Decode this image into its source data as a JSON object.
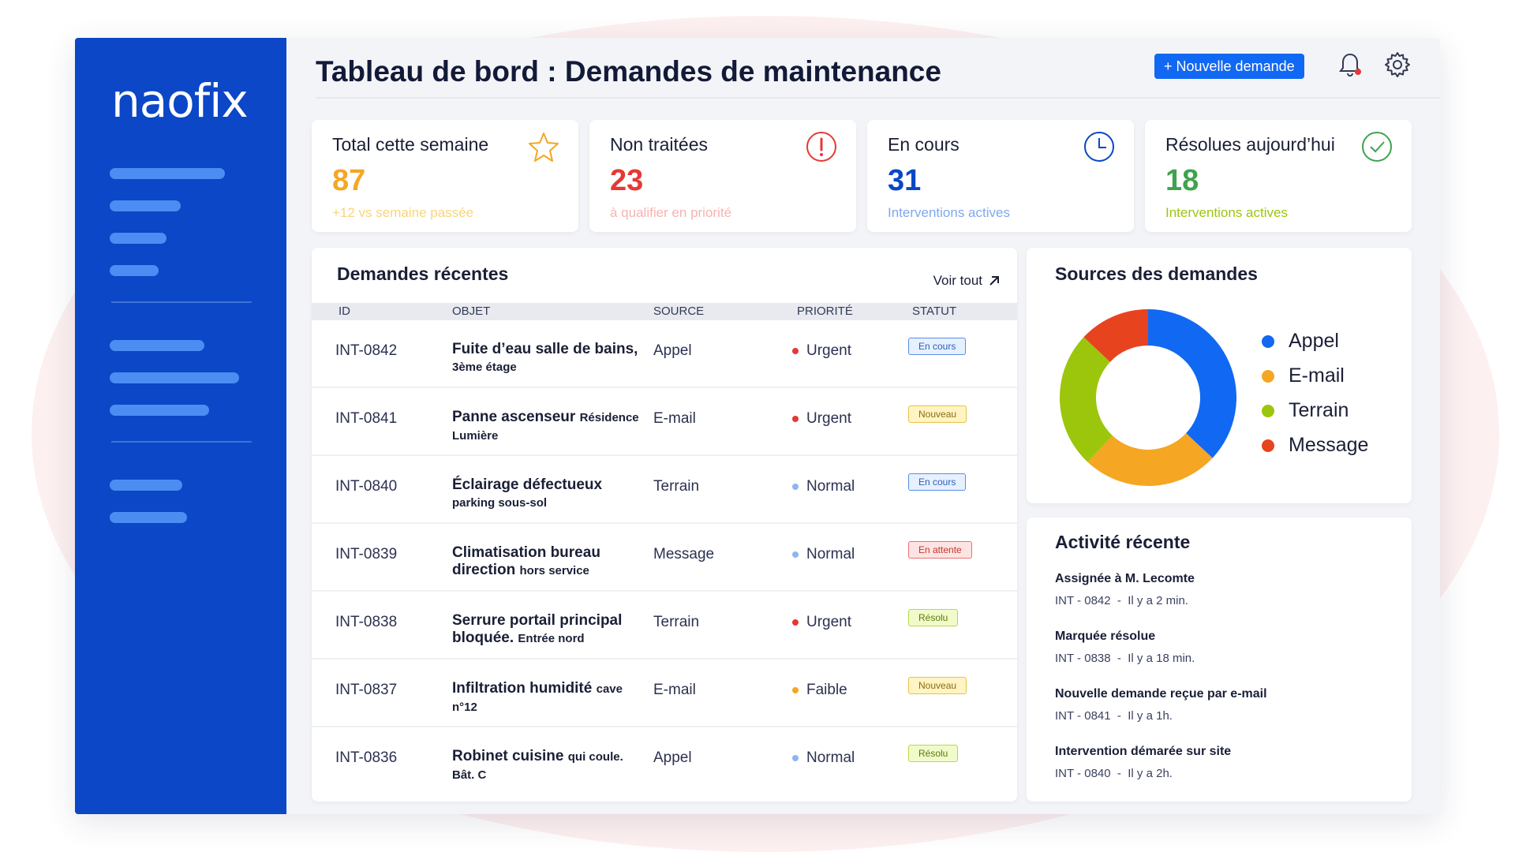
{
  "brand": {
    "logo_text": "naofix"
  },
  "header": {
    "title": "Tableau de bord : Demandes de maintenance",
    "new_button_label": "+ Nouvelle demande"
  },
  "stats": [
    {
      "title": "Total cette semaine",
      "value": "87",
      "sub": "+12 vs semaine passée",
      "color": "#f5a623",
      "sub_color": "#f9d57a",
      "icon": "star-icon"
    },
    {
      "title": "Non traitées",
      "value": "23",
      "sub": "à qualifier en priorité",
      "color": "#e53935",
      "sub_color": "#f7b3b0",
      "icon": "exclamation-icon"
    },
    {
      "title": "En cours",
      "value": "31",
      "sub": "Interventions actives",
      "color": "#0b47c6",
      "sub_color": "#7fa8ee",
      "icon": "clock-icon"
    },
    {
      "title": "Résolues aujourd’hui",
      "value": "18",
      "sub": "Interventions actives",
      "color": "#3fa34d",
      "sub_color": "#9bc60c",
      "icon": "check-icon"
    }
  ],
  "recent": {
    "title": "Demandes récentes",
    "see_all": "Voir tout",
    "columns": [
      "ID",
      "OBJET",
      "SOURCE",
      "PRIORITÉ",
      "STATUT"
    ],
    "rows": [
      {
        "id": "INT-0842",
        "obj_main": "Fuite d’eau salle de bains,",
        "obj_sub": "3ème étage",
        "source": "Appel",
        "priority": "Urgent",
        "pri_color": "#e53935",
        "status": "En cours",
        "status_style": "encours"
      },
      {
        "id": "INT-0841",
        "obj_main": "Panne ascenseur",
        "obj_sub": "Résidence Lumière",
        "source": "E-mail",
        "priority": "Urgent",
        "pri_color": "#e53935",
        "status": "Nouveau",
        "status_style": "nouveau"
      },
      {
        "id": "INT-0840",
        "obj_main": "Éclairage défectueux",
        "obj_sub": "parking sous-sol",
        "source": "Terrain",
        "priority": "Normal",
        "pri_color": "#8fb4f5",
        "status": "En cours",
        "status_style": "encours"
      },
      {
        "id": "INT-0839",
        "obj_main": "Climatisation bureau direction",
        "obj_sub": "hors service",
        "source": "Message",
        "priority": "Normal",
        "pri_color": "#8fb4f5",
        "status": "En attente",
        "status_style": "attente"
      },
      {
        "id": "INT-0838",
        "obj_main": "Serrure portail principal bloquée.",
        "obj_sub": "Entrée nord",
        "source": "Terrain",
        "priority": "Urgent",
        "pri_color": "#e53935",
        "status": "Résolu",
        "status_style": "resolu"
      },
      {
        "id": "INT-0837",
        "obj_main": "Infiltration humidité",
        "obj_sub": "cave n°12",
        "source": "E-mail",
        "priority": "Faible",
        "pri_color": "#f5a623",
        "status": "Nouveau",
        "status_style": "nouveau"
      },
      {
        "id": "INT-0836",
        "obj_main": "Robinet cuisine",
        "obj_sub": "qui coule. Bât. C",
        "source": "Appel",
        "priority": "Normal",
        "pri_color": "#8fb4f5",
        "status": "Résolu",
        "status_style": "resolu"
      }
    ]
  },
  "sources": {
    "title": "Sources des demandes",
    "legend": [
      {
        "label": "Appel",
        "color": "#1168f2"
      },
      {
        "label": "E-mail",
        "color": "#f5a623"
      },
      {
        "label": "Terrain",
        "color": "#9bc60c"
      },
      {
        "label": "Message",
        "color": "#e8431f"
      }
    ]
  },
  "chart_data": {
    "type": "pie",
    "categories": [
      "Appel",
      "E-mail",
      "Terrain",
      "Message"
    ],
    "values": [
      37,
      25,
      25,
      13
    ],
    "colors": [
      "#1168f2",
      "#f5a623",
      "#9bc60c",
      "#e8431f"
    ],
    "title": "Sources des demandes",
    "legend_position": "right",
    "donut": true
  },
  "activity": {
    "title": "Activité récente",
    "items": [
      {
        "title": "Assignée à M. Lecomte",
        "sub": "INT - 0842  -  Il y a 2 min."
      },
      {
        "title": "Marquée résolue",
        "sub": "INT - 0838  -  Il y a 18 min."
      },
      {
        "title": "Nouvelle demande reçue par e-mail",
        "sub": "INT - 0841  -  Il y a 1h."
      },
      {
        "title": "Intervention démarée sur site",
        "sub": "INT - 0840  -  Il y a 2h."
      }
    ]
  },
  "colors": {
    "sidebar": "#0b47c6",
    "accent": "#1168f2"
  }
}
